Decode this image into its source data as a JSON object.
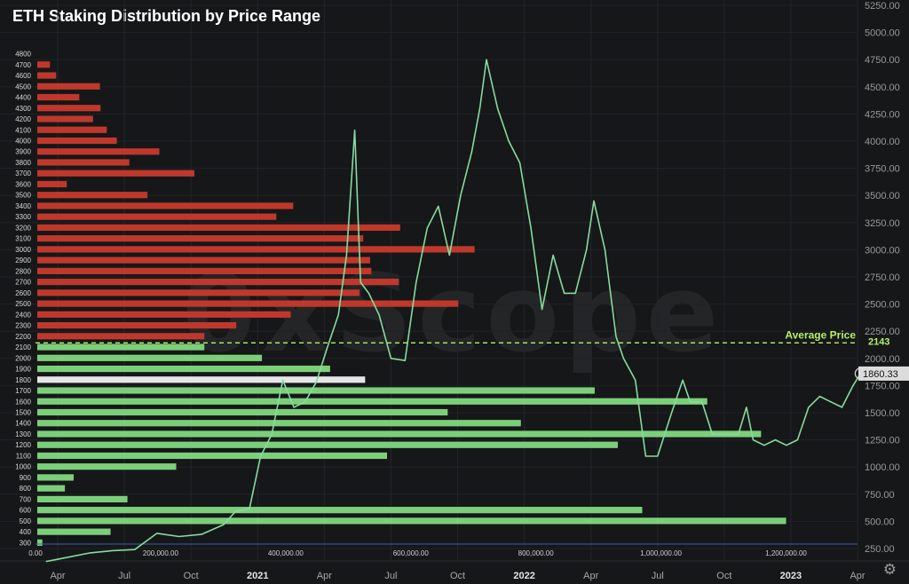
{
  "header": {
    "title": "ETH Staking Distribution by Price Range"
  },
  "watermark": {
    "text": "0xScope"
  },
  "icons": {
    "settings": "gear-icon"
  },
  "colors": {
    "stake_below": "#7ccf79",
    "stake_above": "#c0382b",
    "current_bucket": "#e6e6e6",
    "price_line": "#86dba0",
    "average_line": "#b5f06a",
    "background": "#161719"
  },
  "chart_data": {
    "type": "line",
    "title": "ETH Staking Distribution by Price Range",
    "price_axis": {
      "ticks": [
        250,
        500,
        750,
        1000,
        1250,
        1500,
        1750,
        2000,
        2250,
        2500,
        2750,
        3000,
        3250,
        3500,
        3750,
        4000,
        4250,
        4500,
        4750,
        5000,
        5250
      ],
      "tick_labels": [
        "250.00",
        "500.00",
        "750.00",
        "1000.00",
        "1250.00",
        "1500.00",
        "1750.00",
        "2000.00",
        "2250.00",
        "2500.00",
        "2750.00",
        "3000.00",
        "3250.00",
        "3500.00",
        "3750.00",
        "4000.00",
        "4250.00",
        "4500.00",
        "4750.00",
        "5000.00",
        "5250.00"
      ],
      "position": "right"
    },
    "time_axis": {
      "labels": [
        "Apr",
        "Jul",
        "Oct",
        "2021",
        "Apr",
        "Jul",
        "Oct",
        "2022",
        "Apr",
        "Jul",
        "Oct",
        "2023",
        "Apr"
      ],
      "dates": [
        "2020-04",
        "2020-07",
        "2020-10",
        "2021-01",
        "2021-04",
        "2021-07",
        "2021-10",
        "2022-01",
        "2022-04",
        "2022-07",
        "2022-10",
        "2023-01",
        "2023-04"
      ],
      "bold": [
        "2021",
        "2022",
        "2023"
      ],
      "range": [
        "2020-03",
        "2023-04"
      ]
    },
    "stake_axis": {
      "ticks": [
        0,
        200000,
        400000,
        600000,
        800000,
        1000000,
        1200000
      ],
      "tick_labels": [
        "0.00",
        "200,000.00",
        "400,000.00",
        "600,000.00",
        "800,000.00",
        "1,000,000.00",
        "1,200,000.00"
      ],
      "max": 1300000
    },
    "distribution": {
      "price_buckets": [
        300,
        400,
        500,
        600,
        700,
        800,
        900,
        1000,
        1100,
        1200,
        1300,
        1400,
        1500,
        1600,
        1700,
        1800,
        1900,
        2000,
        2100,
        2200,
        2300,
        2400,
        2500,
        2600,
        2700,
        2800,
        2900,
        3000,
        3100,
        3200,
        3300,
        3400,
        3500,
        3600,
        3700,
        3800,
        3900,
        4000,
        4100,
        4200,
        4300,
        4400,
        4500,
        4600,
        4700,
        4800
      ],
      "stake_amounts": [
        11000,
        120000,
        1200000,
        970000,
        147000,
        47000,
        61000,
        225000,
        562000,
        931000,
        1160000,
        776000,
        659000,
        1074000,
        894000,
        527000,
        471000,
        362000,
        270000,
        270000,
        321000,
        408000,
        676000,
        518000,
        581000,
        537000,
        535000,
        702000,
        524000,
        583000,
        385000,
        412000,
        179000,
        50000,
        254000,
        150000,
        198000,
        130000,
        114000,
        92000,
        104000,
        70000,
        103000,
        33000,
        23000,
        0
      ],
      "current_bucket": 1800
    },
    "series": [
      {
        "name": "",
        "dates": [
          "2020-03-15",
          "2020-04-15",
          "2020-05-15",
          "2020-06-15",
          "2020-07-15",
          "2020-08-15",
          "2020-09-15",
          "2020-10-15",
          "2020-11-15",
          "2020-12-01",
          "2020-12-20",
          "2021-01-05",
          "2021-01-20",
          "2021-02-05",
          "2021-02-20",
          "2021-03-05",
          "2021-03-20",
          "2021-04-05",
          "2021-04-20",
          "2021-05-01",
          "2021-05-12",
          "2021-05-20",
          "2021-06-01",
          "2021-06-15",
          "2021-07-01",
          "2021-07-20",
          "2021-08-05",
          "2021-08-20",
          "2021-09-05",
          "2021-09-20",
          "2021-10-05",
          "2021-10-20",
          "2021-11-01",
          "2021-11-10",
          "2021-11-25",
          "2021-12-10",
          "2021-12-25",
          "2022-01-10",
          "2022-01-25",
          "2022-02-10",
          "2022-02-25",
          "2022-03-10",
          "2022-03-25",
          "2022-04-05",
          "2022-04-20",
          "2022-05-05",
          "2022-05-15",
          "2022-06-01",
          "2022-06-15",
          "2022-07-01",
          "2022-07-20",
          "2022-08-05",
          "2022-08-15",
          "2022-09-01",
          "2022-09-15",
          "2022-10-01",
          "2022-10-20",
          "2022-11-01",
          "2022-11-10",
          "2022-11-25",
          "2022-12-10",
          "2022-12-25",
          "2023-01-10",
          "2023-01-25",
          "2023-02-10",
          "2023-02-25",
          "2023-03-10",
          "2023-03-25",
          "2023-04-05"
        ],
        "values": [
          130,
          170,
          210,
          230,
          240,
          390,
          360,
          380,
          470,
          590,
          620,
          1100,
          1300,
          1800,
          1550,
          1600,
          1780,
          2100,
          2400,
          2950,
          4100,
          2700,
          2600,
          2400,
          2000,
          1980,
          2700,
          3200,
          3400,
          2950,
          3500,
          3900,
          4300,
          4750,
          4300,
          4000,
          3800,
          3200,
          2450,
          2950,
          2600,
          2600,
          3000,
          3450,
          3000,
          2200,
          2000,
          1800,
          1100,
          1100,
          1500,
          1800,
          1600,
          1600,
          1300,
          1300,
          1300,
          1550,
          1250,
          1200,
          1250,
          1200,
          1250,
          1550,
          1650,
          1600,
          1550,
          1750,
          1860
        ]
      }
    ],
    "current_price": 1860.33,
    "current_price_label": "1860.33",
    "average_price": 2143,
    "average_label": "Average Price",
    "average_value_label": "2143",
    "grid": true,
    "legend": "none"
  }
}
